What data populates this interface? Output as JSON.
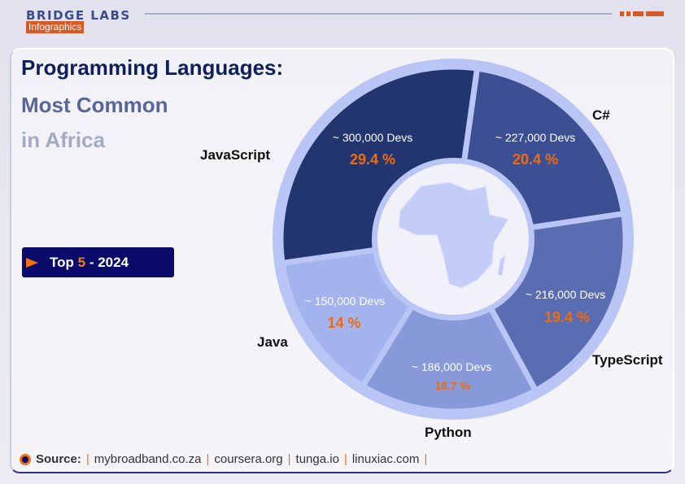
{
  "brand": {
    "name": "BRIDGE LABS",
    "sub": "Infographics"
  },
  "title": {
    "line1": "Programming Languages:",
    "line2": "Most Common",
    "line3": "in Africa"
  },
  "badge": {
    "prefix": "Top",
    "number": "5",
    "suffix": "- 2024"
  },
  "chart_data": {
    "type": "pie",
    "variant": "donut",
    "categories": [
      "C#",
      "TypeScript",
      "Python",
      "Java",
      "JavaScript"
    ],
    "values": [
      20.4,
      19.4,
      16.7,
      14,
      29.4
    ],
    "value_labels": [
      "20.4 %",
      "19.4 %",
      "16.7 %",
      "14 %",
      "29.4 %"
    ],
    "dev_labels": [
      "~ 227,000 Devs",
      "~ 216,000 Devs",
      "~ 186,000 Devs",
      "~ 150,000 Devs",
      "~ 300,000 Devs"
    ],
    "colors": [
      "#3d4f93",
      "#5a6db2",
      "#8799d8",
      "#a2b3ee",
      "#22356f"
    ],
    "ring_color": "#b9c6f5",
    "center_image": "africa-map",
    "legend": "none"
  },
  "source": {
    "label": "Source:",
    "items": [
      "mybroadband.co.za",
      "coursera.org",
      "tunga.io",
      "linuxiac.com"
    ]
  }
}
